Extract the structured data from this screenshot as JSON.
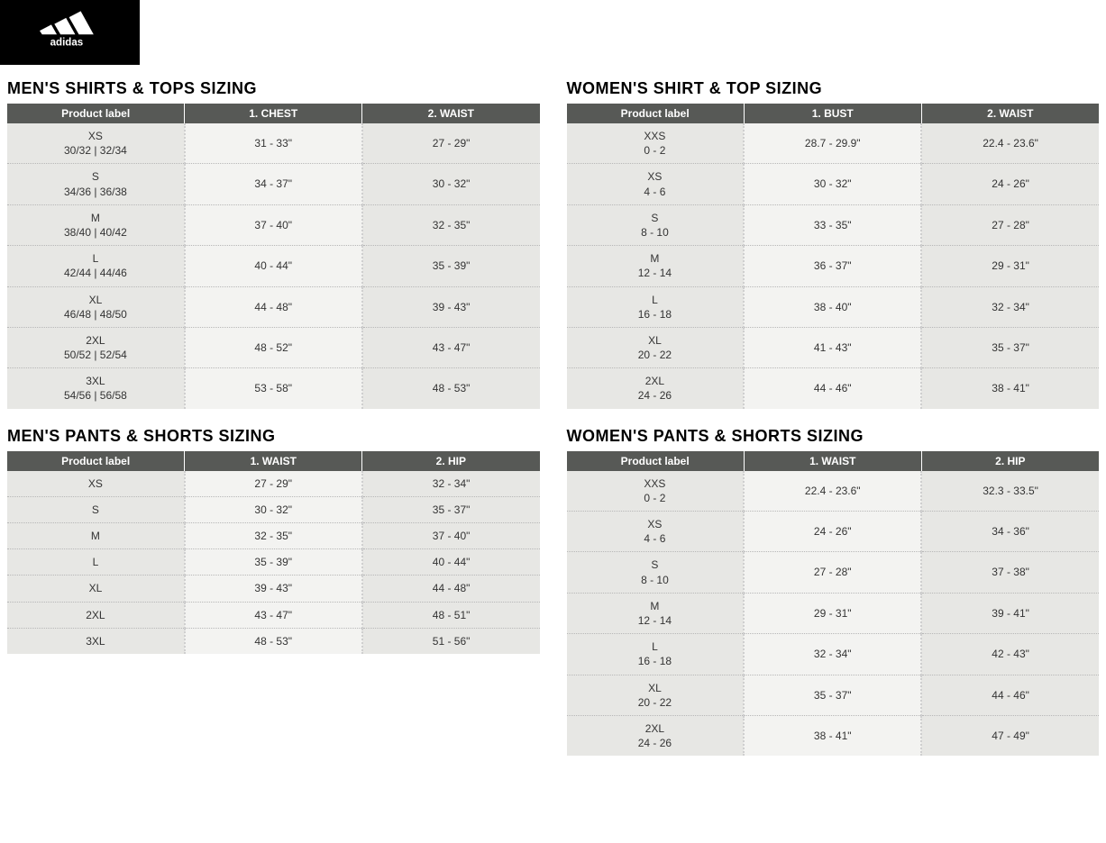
{
  "brand": "adidas",
  "colors": {
    "header_bg": "#575956",
    "header_text": "#ffffff",
    "label_col_bg": "#e7e7e4",
    "odd_col_bg": "#f3f3f1",
    "even_col_bg": "#e7e7e4",
    "dotted_border": "#b7b7b7",
    "page_bg": "#ffffff",
    "logo_bg": "#000000"
  },
  "typography": {
    "title_size_pt": 14,
    "title_weight": 900,
    "cell_size_pt": 9,
    "header_size_pt": 9
  },
  "tables": {
    "mens_tops": {
      "title": "MEN'S SHIRTS & TOPS SIZING",
      "columns": [
        "Product label",
        "1. CHEST",
        "2. WAIST"
      ],
      "rows": [
        {
          "label_main": "XS",
          "label_sub": "30/32 | 32/34",
          "c1": "31 - 33\"",
          "c2": "27 - 29\""
        },
        {
          "label_main": "S",
          "label_sub": "34/36 | 36/38",
          "c1": "34 - 37\"",
          "c2": "30 - 32\""
        },
        {
          "label_main": "M",
          "label_sub": "38/40 | 40/42",
          "c1": "37 - 40\"",
          "c2": "32 - 35\""
        },
        {
          "label_main": "L",
          "label_sub": "42/44 | 44/46",
          "c1": "40 - 44\"",
          "c2": "35 - 39\""
        },
        {
          "label_main": "XL",
          "label_sub": "46/48 | 48/50",
          "c1": "44 - 48\"",
          "c2": "39 - 43\""
        },
        {
          "label_main": "2XL",
          "label_sub": "50/52 | 52/54",
          "c1": "48 - 52\"",
          "c2": "43 - 47\""
        },
        {
          "label_main": "3XL",
          "label_sub": "54/56 | 56/58",
          "c1": "53 - 58\"",
          "c2": "48 - 53\""
        }
      ]
    },
    "womens_tops": {
      "title": "WOMEN'S SHIRT & TOP SIZING",
      "columns": [
        "Product label",
        "1. BUST",
        "2. WAIST"
      ],
      "rows": [
        {
          "label_main": "XXS",
          "label_sub": "0 - 2",
          "c1": "28.7 - 29.9\"",
          "c2": "22.4 - 23.6\""
        },
        {
          "label_main": "XS",
          "label_sub": "4 - 6",
          "c1": "30 - 32\"",
          "c2": "24 - 26\""
        },
        {
          "label_main": "S",
          "label_sub": "8 - 10",
          "c1": "33 - 35\"",
          "c2": "27 - 28\""
        },
        {
          "label_main": "M",
          "label_sub": "12 - 14",
          "c1": "36 - 37\"",
          "c2": "29 - 31\""
        },
        {
          "label_main": "L",
          "label_sub": "16 - 18",
          "c1": "38 - 40\"",
          "c2": "32 - 34\""
        },
        {
          "label_main": "XL",
          "label_sub": "20 - 22",
          "c1": "41 - 43\"",
          "c2": "35 - 37\""
        },
        {
          "label_main": "2XL",
          "label_sub": "24 - 26",
          "c1": "44 - 46\"",
          "c2": "38 - 41\""
        }
      ]
    },
    "mens_pants": {
      "title": "MEN'S PANTS & SHORTS SIZING",
      "columns": [
        "Product label",
        "1. WAIST",
        "2. HIP"
      ],
      "rows": [
        {
          "label_main": "XS",
          "label_sub": "",
          "c1": "27 - 29\"",
          "c2": "32 - 34\""
        },
        {
          "label_main": "S",
          "label_sub": "",
          "c1": "30 - 32\"",
          "c2": "35 - 37\""
        },
        {
          "label_main": "M",
          "label_sub": "",
          "c1": "32 - 35\"",
          "c2": "37 - 40\""
        },
        {
          "label_main": "L",
          "label_sub": "",
          "c1": "35 - 39\"",
          "c2": "40 - 44\""
        },
        {
          "label_main": "XL",
          "label_sub": "",
          "c1": "39 - 43\"",
          "c2": "44 - 48\""
        },
        {
          "label_main": "2XL",
          "label_sub": "",
          "c1": "43 - 47\"",
          "c2": "48 - 51\""
        },
        {
          "label_main": "3XL",
          "label_sub": "",
          "c1": "48 - 53\"",
          "c2": "51 - 56\""
        }
      ]
    },
    "womens_pants": {
      "title": "WOMEN'S PANTS & SHORTS SIZING",
      "columns": [
        "Product label",
        "1. WAIST",
        "2. HIP"
      ],
      "rows": [
        {
          "label_main": "XXS",
          "label_sub": "0 - 2",
          "c1": "22.4 - 23.6\"",
          "c2": "32.3 - 33.5\""
        },
        {
          "label_main": "XS",
          "label_sub": "4 - 6",
          "c1": "24 - 26\"",
          "c2": "34 - 36\""
        },
        {
          "label_main": "S",
          "label_sub": "8 - 10",
          "c1": "27 - 28\"",
          "c2": "37 - 38\""
        },
        {
          "label_main": "M",
          "label_sub": "12 - 14",
          "c1": "29 - 31\"",
          "c2": "39 - 41\""
        },
        {
          "label_main": "L",
          "label_sub": "16 - 18",
          "c1": "32 - 34\"",
          "c2": "42 - 43\""
        },
        {
          "label_main": "XL",
          "label_sub": "20 - 22",
          "c1": "35 - 37\"",
          "c2": "44 - 46\""
        },
        {
          "label_main": "2XL",
          "label_sub": "24 - 26",
          "c1": "38 - 41\"",
          "c2": "47 - 49\""
        }
      ]
    }
  }
}
